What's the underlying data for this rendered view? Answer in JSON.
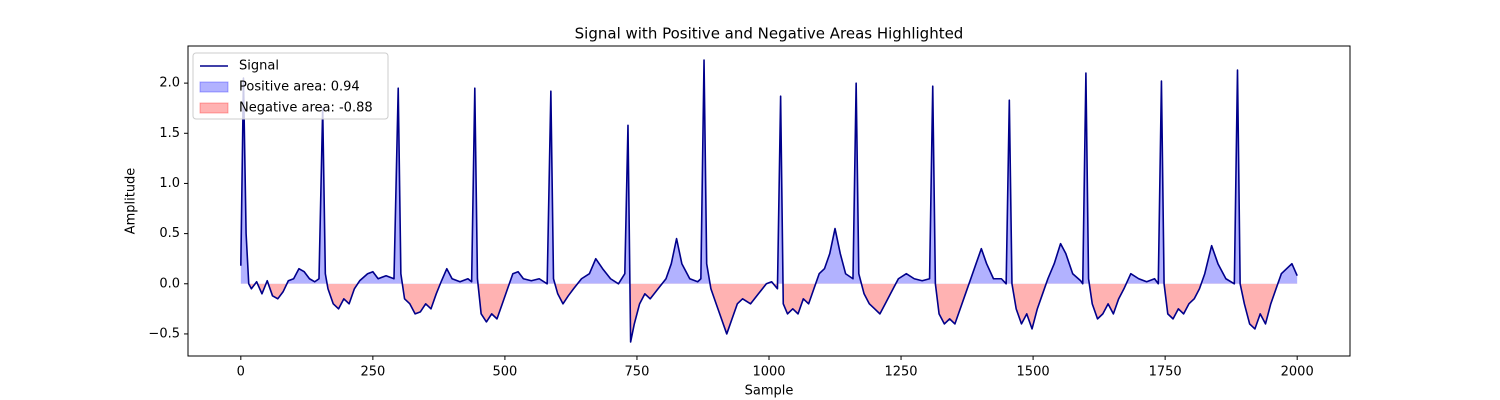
{
  "chart_data": {
    "type": "line",
    "title": "Signal with Positive and Negative Areas Highlighted",
    "xlabel": "Sample",
    "ylabel": "Amplitude",
    "x": [
      0,
      5,
      10,
      15,
      20,
      30,
      40,
      50,
      60,
      70,
      80,
      90,
      100,
      110,
      120,
      130,
      140,
      148,
      155,
      160,
      165,
      175,
      185,
      195,
      205,
      215,
      225,
      240,
      250,
      260,
      275,
      290,
      298,
      303,
      310,
      320,
      330,
      340,
      350,
      360,
      370,
      380,
      390,
      400,
      415,
      430,
      437,
      443,
      448,
      455,
      465,
      475,
      485,
      495,
      505,
      515,
      525,
      535,
      550,
      565,
      580,
      587,
      592,
      600,
      610,
      620,
      630,
      645,
      660,
      672,
      685,
      700,
      715,
      727,
      733,
      738,
      745,
      755,
      765,
      775,
      790,
      805,
      815,
      825,
      835,
      850,
      865,
      871,
      877,
      882,
      890,
      900,
      910,
      920,
      930,
      940,
      950,
      965,
      980,
      995,
      1005,
      1016,
      1022,
      1027,
      1035,
      1045,
      1055,
      1065,
      1075,
      1085,
      1095,
      1105,
      1115,
      1125,
      1135,
      1145,
      1159,
      1165,
      1170,
      1180,
      1190,
      1200,
      1210,
      1220,
      1230,
      1245,
      1260,
      1275,
      1290,
      1304,
      1310,
      1315,
      1322,
      1332,
      1342,
      1352,
      1362,
      1372,
      1382,
      1392,
      1402,
      1412,
      1425,
      1440,
      1449,
      1455,
      1460,
      1468,
      1478,
      1488,
      1498,
      1508,
      1518,
      1528,
      1540,
      1552,
      1562,
      1575,
      1590,
      1594,
      1600,
      1605,
      1612,
      1622,
      1632,
      1642,
      1652,
      1662,
      1672,
      1685,
      1700,
      1715,
      1730,
      1737,
      1743,
      1748,
      1755,
      1765,
      1775,
      1785,
      1795,
      1805,
      1815,
      1825,
      1838,
      1850,
      1865,
      1881,
      1887,
      1892,
      1900,
      1910,
      1920,
      1930,
      1940,
      1950,
      1960,
      1970,
      1980,
      1990,
      2000
    ],
    "series": [
      {
        "name": "Signal",
        "color": "#00008b",
        "values": [
          0.18,
          2.05,
          0.5,
          0.0,
          -0.05,
          0.02,
          -0.1,
          0.03,
          -0.12,
          -0.15,
          -0.08,
          0.03,
          0.05,
          0.15,
          0.12,
          0.05,
          0.02,
          0.05,
          1.75,
          0.1,
          -0.05,
          -0.2,
          -0.25,
          -0.15,
          -0.2,
          -0.05,
          0.03,
          0.1,
          0.12,
          0.05,
          0.08,
          0.05,
          1.95,
          0.1,
          -0.15,
          -0.2,
          -0.3,
          -0.28,
          -0.2,
          -0.25,
          -0.1,
          0.03,
          0.15,
          0.05,
          0.02,
          0.05,
          0.02,
          1.95,
          0.05,
          -0.3,
          -0.38,
          -0.3,
          -0.35,
          -0.2,
          -0.05,
          0.1,
          0.12,
          0.05,
          0.03,
          0.05,
          0.0,
          1.92,
          0.05,
          -0.1,
          -0.2,
          -0.12,
          -0.05,
          0.05,
          0.1,
          0.25,
          0.15,
          0.05,
          0.0,
          0.1,
          1.58,
          -0.58,
          -0.4,
          -0.2,
          -0.1,
          -0.15,
          -0.05,
          0.05,
          0.2,
          0.45,
          0.2,
          0.05,
          0.02,
          0.05,
          2.23,
          0.2,
          -0.05,
          -0.2,
          -0.35,
          -0.5,
          -0.35,
          -0.2,
          -0.15,
          -0.2,
          -0.1,
          0.0,
          0.02,
          -0.05,
          1.87,
          -0.2,
          -0.3,
          -0.25,
          -0.3,
          -0.15,
          -0.2,
          -0.05,
          0.1,
          0.15,
          0.3,
          0.55,
          0.3,
          0.1,
          0.05,
          2.0,
          0.1,
          -0.1,
          -0.2,
          -0.25,
          -0.3,
          -0.2,
          -0.1,
          0.05,
          0.1,
          0.05,
          0.03,
          0.05,
          1.97,
          0.0,
          -0.3,
          -0.4,
          -0.35,
          -0.4,
          -0.25,
          -0.1,
          0.05,
          0.2,
          0.35,
          0.2,
          0.05,
          0.05,
          0.0,
          1.83,
          0.0,
          -0.25,
          -0.4,
          -0.3,
          -0.45,
          -0.25,
          -0.1,
          0.05,
          0.2,
          0.4,
          0.3,
          0.1,
          0.03,
          0.0,
          2.1,
          0.05,
          -0.2,
          -0.35,
          -0.3,
          -0.2,
          -0.3,
          -0.15,
          -0.05,
          0.1,
          0.05,
          0.02,
          0.05,
          0.0,
          2.02,
          0.0,
          -0.3,
          -0.35,
          -0.25,
          -0.3,
          -0.2,
          -0.15,
          -0.05,
          0.1,
          0.38,
          0.2,
          0.05,
          0.0,
          2.13,
          0.0,
          -0.2,
          -0.4,
          -0.45,
          -0.3,
          -0.4,
          -0.2,
          -0.05,
          0.1,
          0.15,
          0.2,
          0.08
        ]
      }
    ],
    "areas": [
      {
        "name": "Positive area: 0.94",
        "color": "#0000ff",
        "alpha": 0.3,
        "side": "positive"
      },
      {
        "name": "Negative area: -0.88",
        "color": "#ff0000",
        "alpha": 0.3,
        "side": "negative"
      }
    ],
    "xlim": [
      -100,
      2100
    ],
    "ylim": [
      -0.72,
      2.37
    ],
    "xticks": [
      0,
      250,
      500,
      750,
      1000,
      1250,
      1500,
      1750,
      2000
    ],
    "yticks": [
      {
        "value": -0.5,
        "label": "−0.5"
      },
      {
        "value": 0,
        "label": "0.0"
      },
      {
        "value": 0.5,
        "label": "0.5"
      },
      {
        "value": 1,
        "label": "1.0"
      },
      {
        "value": 1.5,
        "label": "1.5"
      },
      {
        "value": 2,
        "label": "2.0"
      }
    ],
    "legend": "upper left"
  }
}
